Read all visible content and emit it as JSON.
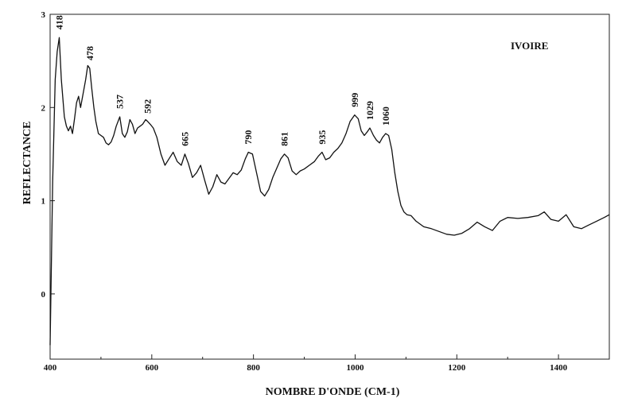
{
  "chart_data": {
    "type": "line",
    "title": "IVOIRE",
    "xlabel": "NOMBRE D'ONDE (CM-1)",
    "ylabel": "REFLECTANCE",
    "xlim": [
      400,
      1500
    ],
    "ylim": [
      -0.7,
      3
    ],
    "x_ticks": [
      400,
      600,
      800,
      1000,
      1200,
      1400
    ],
    "x_tick_labels": [
      "400",
      "600",
      "800",
      "1000",
      "1200",
      "1400"
    ],
    "y_ticks": [
      0,
      1,
      2,
      3
    ],
    "y_tick_labels": [
      "0",
      "1",
      "2",
      "3"
    ],
    "grid": false,
    "legend": "none",
    "line_color": "#111111",
    "peak_labels": [
      {
        "x": 418,
        "text": "418"
      },
      {
        "x": 478,
        "text": "478"
      },
      {
        "x": 537,
        "text": "537"
      },
      {
        "x": 592,
        "text": "592"
      },
      {
        "x": 665,
        "text": "665"
      },
      {
        "x": 790,
        "text": "790"
      },
      {
        "x": 861,
        "text": "861"
      },
      {
        "x": 935,
        "text": "935"
      },
      {
        "x": 999,
        "text": "999"
      },
      {
        "x": 1029,
        "text": "1029"
      },
      {
        "x": 1060,
        "text": "1060"
      }
    ],
    "series": [
      {
        "x": [
          400,
          405,
          410,
          414,
          418,
          422,
          428,
          432,
          436,
          440,
          444,
          448,
          452,
          456,
          460,
          465,
          470,
          474,
          478,
          482,
          486,
          490,
          495,
          500,
          505,
          510,
          515,
          520,
          525,
          530,
          537,
          542,
          547,
          552,
          557,
          562,
          567,
          572,
          577,
          582,
          588,
          592,
          597,
          603,
          610,
          618,
          626,
          634,
          642,
          650,
          658,
          665,
          672,
          680,
          688,
          696,
          704,
          712,
          720,
          728,
          736,
          744,
          752,
          760,
          768,
          776,
          784,
          790,
          798,
          806,
          814,
          822,
          830,
          838,
          846,
          854,
          861,
          868,
          876,
          884,
          892,
          900,
          910,
          920,
          928,
          935,
          942,
          950,
          958,
          966,
          974,
          982,
          990,
          999,
          1006,
          1012,
          1018,
          1024,
          1029,
          1036,
          1042,
          1048,
          1054,
          1060,
          1066,
          1072,
          1078,
          1084,
          1090,
          1096,
          1102,
          1110,
          1120,
          1135,
          1150,
          1165,
          1180,
          1195,
          1210,
          1225,
          1240,
          1255,
          1270,
          1285,
          1300,
          1320,
          1340,
          1360,
          1372,
          1385,
          1400,
          1415,
          1430,
          1445,
          1460,
          1475,
          1490,
          1500
        ],
        "y": [
          -0.55,
          1.2,
          2.3,
          2.6,
          2.75,
          2.3,
          1.9,
          1.8,
          1.75,
          1.8,
          1.72,
          1.88,
          2.05,
          2.12,
          2.0,
          2.15,
          2.3,
          2.45,
          2.42,
          2.2,
          2.0,
          1.85,
          1.72,
          1.7,
          1.68,
          1.62,
          1.6,
          1.63,
          1.7,
          1.8,
          1.9,
          1.72,
          1.68,
          1.74,
          1.87,
          1.82,
          1.72,
          1.78,
          1.8,
          1.82,
          1.87,
          1.85,
          1.82,
          1.78,
          1.68,
          1.5,
          1.38,
          1.45,
          1.52,
          1.42,
          1.38,
          1.5,
          1.4,
          1.25,
          1.3,
          1.38,
          1.22,
          1.07,
          1.15,
          1.28,
          1.2,
          1.18,
          1.24,
          1.3,
          1.28,
          1.33,
          1.45,
          1.52,
          1.5,
          1.3,
          1.1,
          1.05,
          1.12,
          1.25,
          1.35,
          1.45,
          1.5,
          1.46,
          1.32,
          1.28,
          1.32,
          1.34,
          1.38,
          1.42,
          1.48,
          1.52,
          1.44,
          1.46,
          1.52,
          1.56,
          1.62,
          1.72,
          1.85,
          1.92,
          1.88,
          1.75,
          1.7,
          1.74,
          1.78,
          1.7,
          1.65,
          1.62,
          1.68,
          1.72,
          1.7,
          1.55,
          1.3,
          1.1,
          0.95,
          0.88,
          0.85,
          0.84,
          0.78,
          0.72,
          0.7,
          0.67,
          0.64,
          0.63,
          0.65,
          0.7,
          0.77,
          0.72,
          0.68,
          0.78,
          0.82,
          0.81,
          0.82,
          0.84,
          0.88,
          0.8,
          0.78,
          0.85,
          0.72,
          0.7,
          0.74,
          0.78,
          0.82,
          0.85
        ]
      }
    ]
  }
}
